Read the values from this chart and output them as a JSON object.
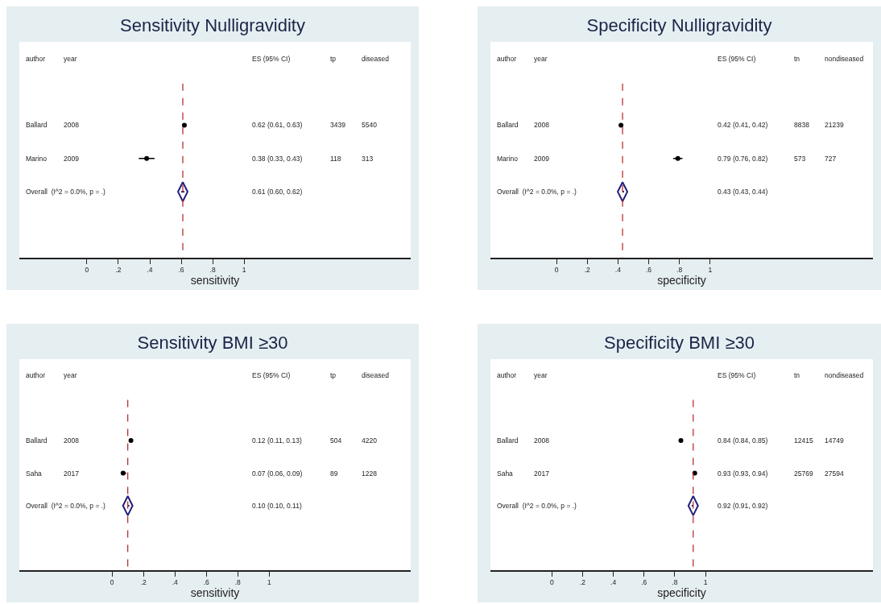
{
  "chart_data": [
    {
      "type": "scatter",
      "orientation": "horizontal",
      "title": "Sensitivity Nulligravidity",
      "xlabel": "sensitivity",
      "grid": false,
      "categories": [
        "Ballard",
        "Marino",
        "Overall  (I^2 = 0.0%, p = .)"
      ],
      "xlim": [
        -0.43,
        2.06
      ],
      "xticks": [
        {
          "value": 0,
          "label": "0"
        },
        {
          "value": 0.2,
          "label": ".2"
        },
        {
          "value": 0.4,
          "label": ".4"
        },
        {
          "value": 0.6,
          "label": ".6"
        },
        {
          "value": 0.8,
          "label": ".8"
        },
        {
          "value": 1,
          "label": "1"
        }
      ],
      "series": [
        {
          "color": "#000000",
          "marker": "circle",
          "values": [
            0.62,
            0.38,
            null
          ],
          "errors": [
            [
              0.61,
              0.63
            ],
            [
              0.33,
              0.43
            ],
            null
          ]
        },
        {
          "color": "#1f1f7a",
          "marker": "diamond",
          "values": [
            null,
            null,
            0.61
          ],
          "errors": [
            null,
            null,
            [
              0.6,
              0.62
            ]
          ]
        }
      ],
      "ref_lines": [
        {
          "axis": "x",
          "value": 0.61,
          "color": "#b22222",
          "line_style": "dashed"
        }
      ],
      "annotations": [
        "author",
        "year",
        "ES (95% CI)",
        "tp",
        "diseased",
        "2008",
        "0.62 (0.61, 0.63)",
        "3439",
        "5540",
        "2009",
        "0.38 (0.33, 0.43)",
        "118",
        "313",
        "0.61 (0.60, 0.62)"
      ]
    },
    {
      "type": "scatter",
      "orientation": "horizontal",
      "title": "Specificity Nulligravidity",
      "xlabel": "specificity",
      "grid": false,
      "categories": [
        "Ballard",
        "Marino",
        "Overall  (I^2 = 0.0%, p = .)"
      ],
      "xlim": [
        -0.43,
        2.06
      ],
      "xticks": [
        {
          "value": 0,
          "label": "0"
        },
        {
          "value": 0.2,
          "label": ".2"
        },
        {
          "value": 0.4,
          "label": ".4"
        },
        {
          "value": 0.6,
          "label": ".6"
        },
        {
          "value": 0.8,
          "label": ".8"
        },
        {
          "value": 1,
          "label": "1"
        }
      ],
      "series": [
        {
          "color": "#000000",
          "marker": "circle",
          "values": [
            0.42,
            0.79,
            null
          ],
          "errors": [
            [
              0.41,
              0.42
            ],
            [
              0.76,
              0.82
            ],
            null
          ]
        },
        {
          "color": "#1f1f7a",
          "marker": "diamond",
          "values": [
            null,
            null,
            0.43
          ],
          "errors": [
            null,
            null,
            [
              0.43,
              0.44
            ]
          ]
        }
      ],
      "ref_lines": [
        {
          "axis": "x",
          "value": 0.43,
          "color": "#b22222",
          "line_style": "dashed"
        }
      ],
      "annotations": [
        "author",
        "year",
        "ES (95% CI)",
        "tn",
        "nondiseased",
        "2008",
        "0.42 (0.41, 0.42)",
        "8838",
        "21239",
        "2009",
        "0.79 (0.76, 0.82)",
        "573",
        "727",
        "0.43 (0.43, 0.44)"
      ]
    },
    {
      "type": "scatter",
      "orientation": "horizontal",
      "title": "Sensitivity BMI ≥30",
      "xlabel": "sensitivity",
      "grid": false,
      "categories": [
        "Ballard",
        "Saha",
        "Overall  (I^2 = 0.0%, p = .)"
      ],
      "xlim": [
        -0.59,
        1.9
      ],
      "xticks": [
        {
          "value": 0,
          "label": "0"
        },
        {
          "value": 0.2,
          "label": ".2"
        },
        {
          "value": 0.4,
          "label": ".4"
        },
        {
          "value": 0.6,
          "label": ".6"
        },
        {
          "value": 0.8,
          "label": ".8"
        },
        {
          "value": 1,
          "label": "1"
        }
      ],
      "series": [
        {
          "color": "#000000",
          "marker": "circle",
          "values": [
            0.12,
            0.07,
            null
          ],
          "errors": [
            [
              0.11,
              0.13
            ],
            [
              0.06,
              0.09
            ],
            null
          ]
        },
        {
          "color": "#1f1f7a",
          "marker": "diamond",
          "values": [
            null,
            null,
            0.1
          ],
          "errors": [
            null,
            null,
            [
              0.1,
              0.11
            ]
          ]
        }
      ],
      "ref_lines": [
        {
          "axis": "x",
          "value": 0.1,
          "color": "#b22222",
          "line_style": "dashed"
        }
      ],
      "annotations": [
        "author",
        "year",
        "ES (95% CI)",
        "tp",
        "diseased",
        "2008",
        "0.12 (0.11, 0.13)",
        "504",
        "4220",
        "2017",
        "0.07 (0.06, 0.09)",
        "89",
        "1228",
        "0.10 (0.10, 0.11)"
      ]
    },
    {
      "type": "scatter",
      "orientation": "horizontal",
      "title": "Specificity BMI ≥30",
      "xlabel": "specificity",
      "grid": false,
      "categories": [
        "Ballard",
        "Saha",
        "Overall  (I^2 = 0.0%, p = .)"
      ],
      "xlim": [
        -0.4,
        2.09
      ],
      "xticks": [
        {
          "value": 0,
          "label": "0"
        },
        {
          "value": 0.2,
          "label": ".2"
        },
        {
          "value": 0.4,
          "label": ".4"
        },
        {
          "value": 0.6,
          "label": ".6"
        },
        {
          "value": 0.8,
          "label": ".8"
        },
        {
          "value": 1,
          "label": "1"
        }
      ],
      "series": [
        {
          "color": "#000000",
          "marker": "circle",
          "values": [
            0.84,
            0.93,
            null
          ],
          "errors": [
            [
              0.84,
              0.85
            ],
            [
              0.93,
              0.94
            ],
            null
          ]
        },
        {
          "color": "#1f1f7a",
          "marker": "diamond",
          "values": [
            null,
            null,
            0.92
          ],
          "errors": [
            null,
            null,
            [
              0.91,
              0.92
            ]
          ]
        }
      ],
      "ref_lines": [
        {
          "axis": "x",
          "value": 0.92,
          "color": "#b22222",
          "line_style": "dashed"
        }
      ],
      "annotations": [
        "author",
        "year",
        "ES (95% CI)",
        "tn",
        "nondiseased",
        "2008",
        "0.84 (0.84, 0.85)",
        "12415",
        "14749",
        "2017",
        "0.93 (0.93, 0.94)",
        "25769",
        "27594",
        "0.92 (0.91, 0.92)"
      ]
    }
  ]
}
